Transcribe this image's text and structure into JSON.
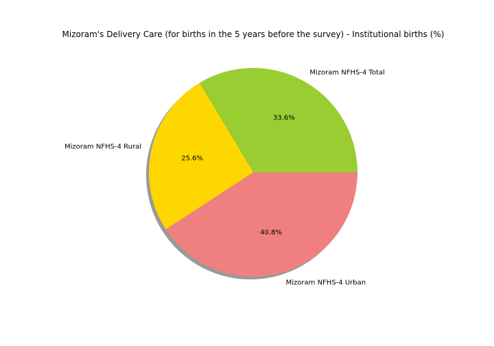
{
  "chart_data": {
    "type": "pie",
    "title": "Mizoram's Delivery Care (for births in the 5 years before the survey) - Institutional births (%)",
    "labels": [
      "Mizoram NFHS-4 Total",
      "Mizoram NFHS-4 Rural",
      "Mizoram NFHS-4 Urban"
    ],
    "values": [
      33.6,
      25.6,
      40.8
    ],
    "percent_labels": [
      "33.6%",
      "25.6%",
      "40.8%"
    ],
    "colors": [
      "#9acd32",
      "#ffd700",
      "#f08080"
    ],
    "start_angle_deg": 0,
    "direction": "counterclockwise",
    "shadow": true
  }
}
